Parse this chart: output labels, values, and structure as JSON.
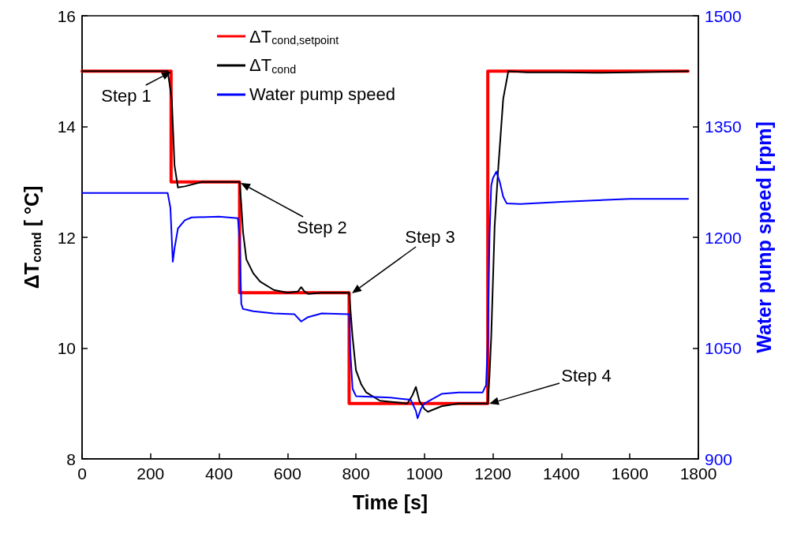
{
  "chart_data": {
    "type": "line",
    "xlabel": "Time [s]",
    "ylabel": "ΔT$_{cond}$ [ °C]",
    "y2label": "Water pump speed [rpm]",
    "xlim": [
      0,
      1800
    ],
    "xticks": [
      0,
      200,
      400,
      600,
      800,
      1000,
      1200,
      1400,
      1600,
      1800
    ],
    "ylim": [
      8,
      16
    ],
    "yticks": [
      8,
      10,
      12,
      14,
      16
    ],
    "y2lim": [
      900,
      1500
    ],
    "y2ticks": [
      900,
      1050,
      1200,
      1350,
      1500
    ],
    "legend": "top",
    "marker": "none",
    "line_style": "solid",
    "grid": false,
    "series": [
      {
        "name": "ΔT$_{cond,setpoint}$",
        "color": "#ff0000",
        "axis": "y",
        "x": [
          0,
          260,
          260,
          460,
          460,
          780,
          780,
          1185,
          1185,
          1770
        ],
        "values": [
          15,
          15,
          13,
          13,
          11,
          11,
          9,
          9,
          15,
          15
        ]
      },
      {
        "name": "ΔT$_{cond}$",
        "color": "#000000",
        "axis": "y",
        "x": [
          0,
          250,
          262,
          270,
          280,
          300,
          350,
          460,
          465,
          470,
          480,
          500,
          520,
          560,
          600,
          630,
          640,
          650,
          660,
          700,
          780,
          785,
          790,
          800,
          815,
          830,
          870,
          950,
          965,
          975,
          985,
          1000,
          1010,
          1050,
          1100,
          1150,
          1185,
          1190,
          1195,
          1200,
          1205,
          1215,
          1230,
          1245,
          1300,
          1400,
          1500,
          1600,
          1700,
          1770
        ],
        "values": [
          15,
          15,
          14.5,
          13.3,
          12.9,
          12.92,
          13,
          13,
          12.6,
          12.1,
          11.6,
          11.35,
          11.2,
          11.05,
          11,
          11.02,
          11.1,
          11.02,
          10.98,
          11,
          11,
          10.6,
          10.2,
          9.6,
          9.35,
          9.2,
          9.05,
          9,
          9.15,
          9.3,
          9.05,
          8.9,
          8.85,
          8.95,
          9,
          9,
          9,
          9.5,
          10.2,
          11.2,
          12.2,
          13.2,
          14.5,
          15,
          14.98,
          14.98,
          14.97,
          14.98,
          14.99,
          15
        ]
      },
      {
        "name": "Water pump speed",
        "color": "#0000ff",
        "axis": "y2",
        "x": [
          0,
          250,
          258,
          265,
          270,
          280,
          300,
          320,
          400,
          455,
          460,
          465,
          470,
          480,
          500,
          560,
          620,
          640,
          660,
          700,
          780,
          783,
          790,
          800,
          900,
          960,
          975,
          980,
          990,
          1000,
          1050,
          1100,
          1170,
          1180,
          1185,
          1190,
          1195,
          1200,
          1210,
          1220,
          1230,
          1240,
          1280,
          1400,
          1600,
          1770
        ],
        "values": [
          1260,
          1260,
          1240,
          1167,
          1185,
          1212,
          1223,
          1227,
          1228,
          1226,
          1200,
          1110,
          1103,
          1102,
          1100,
          1097,
          1096,
          1086,
          1092,
          1097,
          1096,
          1050,
          995,
          985,
          983,
          980,
          965,
          955,
          968,
          975,
          988,
          990,
          990,
          1000,
          1060,
          1200,
          1270,
          1280,
          1289,
          1275,
          1255,
          1246,
          1245,
          1248,
          1252,
          1252
        ]
      }
    ],
    "annotations": [
      "Step 1",
      "Step 2",
      "Step 3",
      "Step 4"
    ]
  }
}
